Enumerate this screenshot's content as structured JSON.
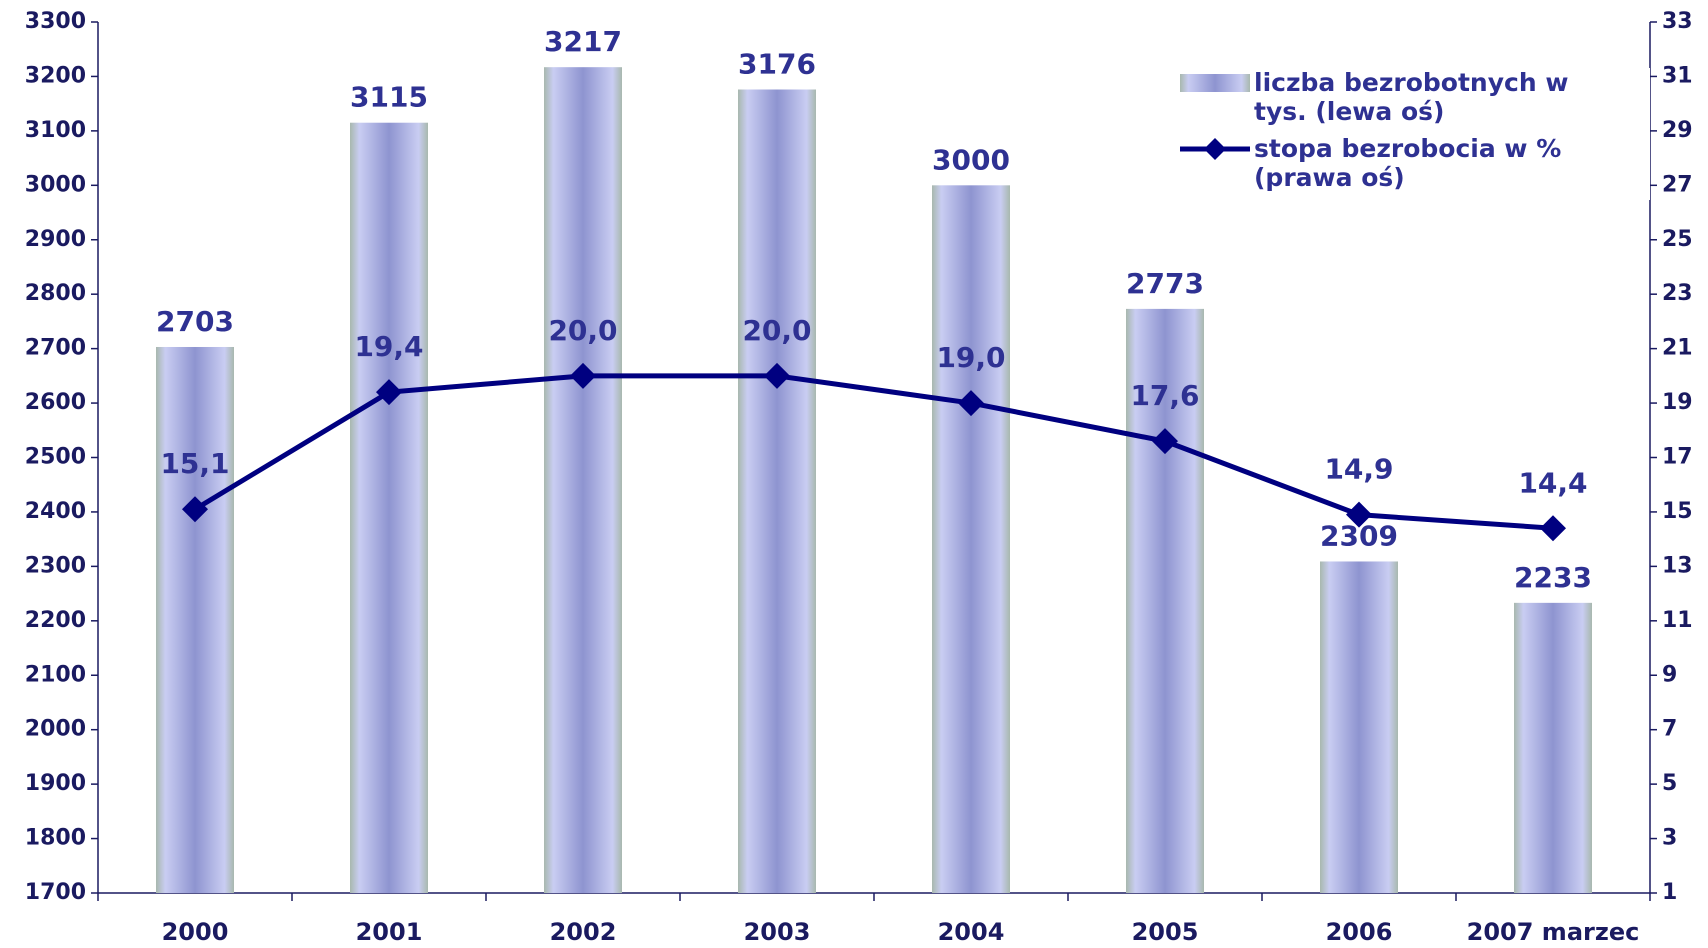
{
  "chart_data": {
    "type": "bar-line",
    "categories": [
      "2000",
      "2001",
      "2002",
      "2003",
      "2004",
      "2005",
      "2006",
      "2007 marzec"
    ],
    "series": [
      {
        "name": "liczba bezrobotnych w tys. (lewa oś)",
        "type": "bar",
        "color": "#8e94d0",
        "values": [
          2703,
          3115,
          3217,
          3176,
          3000,
          2773,
          2309,
          2233
        ]
      },
      {
        "name": "stopa bezrobocia w % (prawa oś)",
        "type": "line",
        "axis": "y2",
        "color": "#000080",
        "values": [
          15.1,
          19.4,
          20.0,
          20.0,
          19.0,
          17.6,
          14.9,
          14.4
        ],
        "value_labels": [
          "15,1",
          "19,4",
          "20,0",
          "20,0",
          "19,0",
          "17,6",
          "14,9",
          "14,4"
        ]
      }
    ],
    "ylim": [
      1700,
      3300
    ],
    "yticks": [
      1700,
      1800,
      1900,
      2000,
      2100,
      2200,
      2300,
      2400,
      2500,
      2600,
      2700,
      2800,
      2900,
      3000,
      3100,
      3200,
      3300
    ],
    "y2lim": [
      1,
      33
    ],
    "y2ticks": [
      1,
      3,
      5,
      7,
      9,
      11,
      13,
      15,
      17,
      19,
      21,
      23,
      25,
      27,
      29,
      31,
      33
    ],
    "legend": "upper right"
  }
}
